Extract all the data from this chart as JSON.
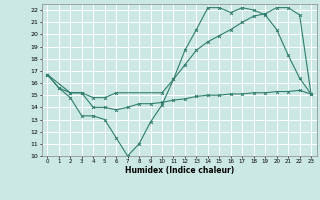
{
  "xlabel": "Humidex (Indice chaleur)",
  "bg_color": "#cce8e4",
  "grid_color": "#ffffff",
  "line_color": "#2e7d6e",
  "xlim": [
    -0.5,
    23.5
  ],
  "ylim": [
    10,
    22.5
  ],
  "yticks": [
    10,
    11,
    12,
    13,
    14,
    15,
    16,
    17,
    18,
    19,
    20,
    21,
    22
  ],
  "xticks": [
    0,
    1,
    2,
    3,
    4,
    5,
    6,
    7,
    8,
    9,
    10,
    11,
    12,
    13,
    14,
    15,
    16,
    17,
    18,
    19,
    20,
    21,
    22,
    23
  ],
  "line1_x": [
    0,
    1,
    2,
    3,
    4,
    5,
    6,
    7,
    8,
    9,
    10,
    11,
    12,
    13,
    14,
    15,
    16,
    17,
    18,
    19,
    20,
    21,
    22,
    23
  ],
  "line1_y": [
    16.7,
    15.6,
    14.8,
    13.3,
    13.3,
    13.0,
    11.5,
    10.0,
    11.0,
    12.8,
    14.2,
    16.3,
    18.7,
    20.4,
    22.2,
    22.2,
    21.8,
    22.2,
    22.0,
    21.6,
    20.4,
    18.3,
    16.4,
    15.1
  ],
  "line2_x": [
    0,
    1,
    2,
    3,
    4,
    5,
    6,
    7,
    8,
    9,
    10,
    11,
    12,
    13,
    14,
    15,
    16,
    17,
    18,
    19,
    20,
    21,
    22,
    23
  ],
  "line2_y": [
    16.7,
    15.6,
    15.2,
    15.2,
    14.0,
    14.0,
    13.8,
    14.0,
    14.3,
    14.3,
    14.4,
    14.6,
    14.7,
    14.9,
    15.0,
    15.0,
    15.1,
    15.1,
    15.2,
    15.2,
    15.3,
    15.3,
    15.4,
    15.1
  ],
  "line3_x": [
    0,
    2,
    3,
    4,
    5,
    6,
    10,
    11,
    12,
    13,
    14,
    15,
    16,
    17,
    18,
    19,
    20,
    21,
    22,
    23
  ],
  "line3_y": [
    16.7,
    15.2,
    15.2,
    14.8,
    14.8,
    15.2,
    15.2,
    16.3,
    17.5,
    18.7,
    19.4,
    19.9,
    20.4,
    21.0,
    21.5,
    21.7,
    22.2,
    22.2,
    21.6,
    15.1
  ]
}
